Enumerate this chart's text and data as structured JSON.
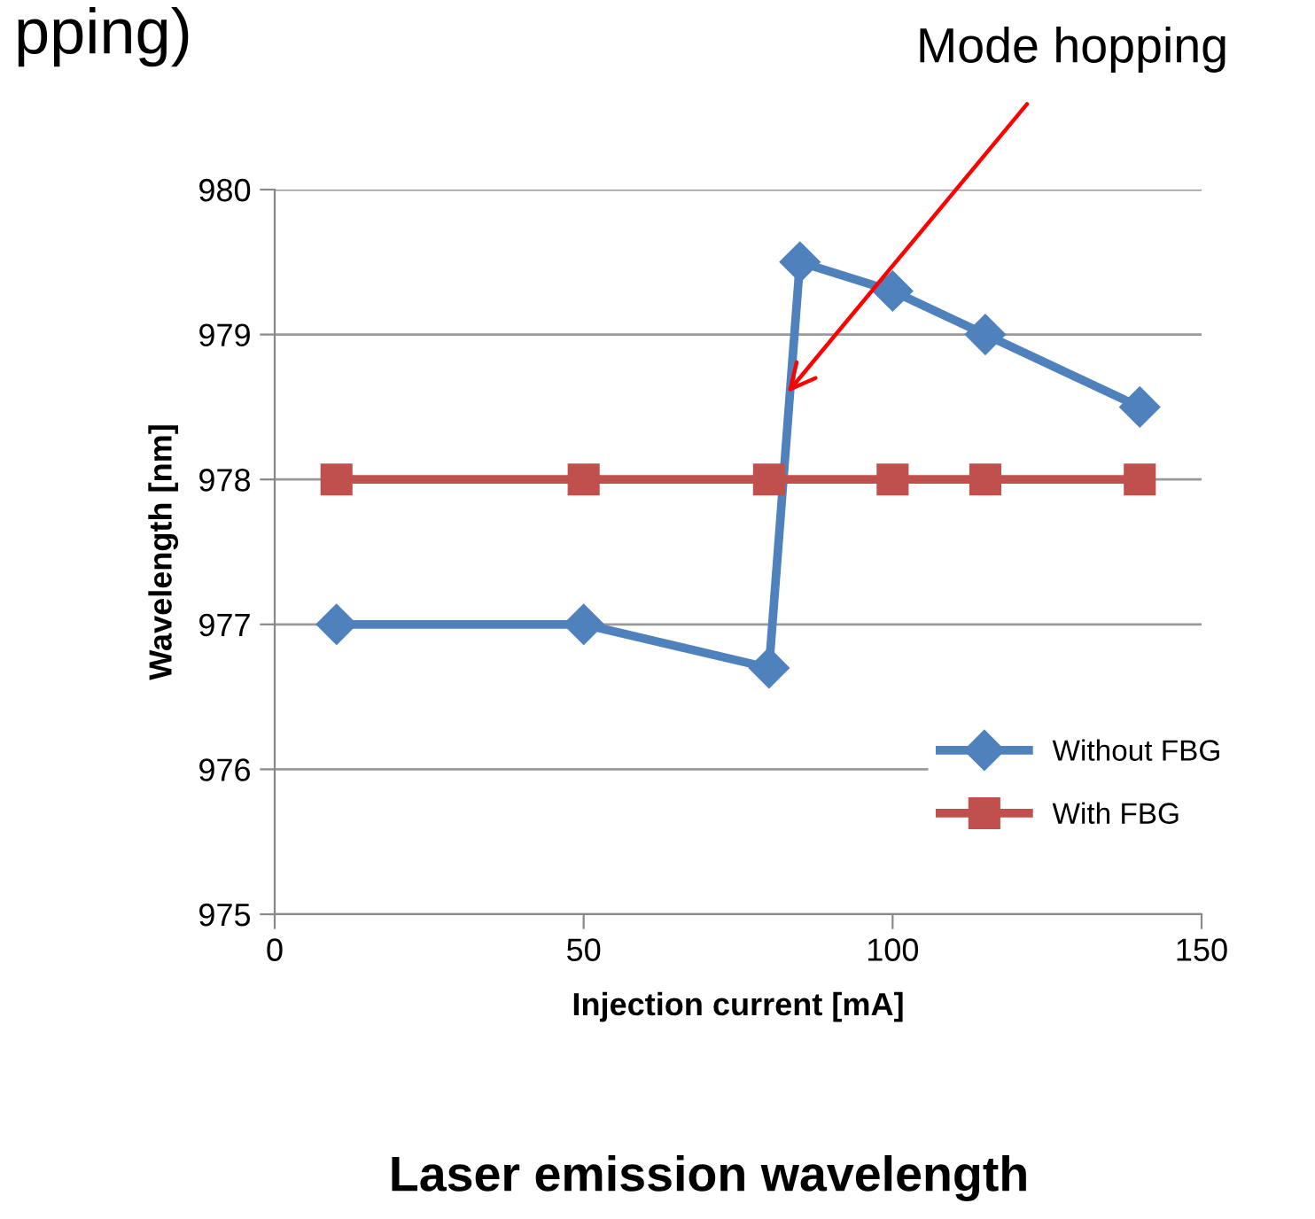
{
  "chart_data": {
    "type": "line",
    "title": "Laser emission wavelength",
    "xlabel": "Injection current [mA]",
    "ylabel": "Wavelength [nm]",
    "annotations": [
      "pping)",
      {
        "text": "Mode hopping",
        "x": 83,
        "y": 978.6
      }
    ],
    "series": [
      {
        "name": "Without FBG",
        "color": "#4f81bd",
        "marker": "diamond",
        "x": [
          10,
          50,
          80,
          85,
          100,
          115,
          140
        ],
        "values": [
          977,
          977,
          976.7,
          979.5,
          979.3,
          979,
          978.5
        ]
      },
      {
        "name": "With FBG",
        "color": "#c0504d",
        "marker": "square",
        "x": [
          10,
          50,
          80,
          100,
          115,
          140
        ],
        "values": [
          978,
          978,
          978,
          978,
          978,
          978
        ]
      }
    ],
    "xlim": [
      0,
      150
    ],
    "xticks": [
      0,
      50,
      100,
      150
    ],
    "ylim": [
      975,
      980
    ],
    "yticks": [
      975,
      976,
      977,
      978,
      979,
      980
    ],
    "grid": "y",
    "legend": "bottom right",
    "line_style": "solid"
  }
}
